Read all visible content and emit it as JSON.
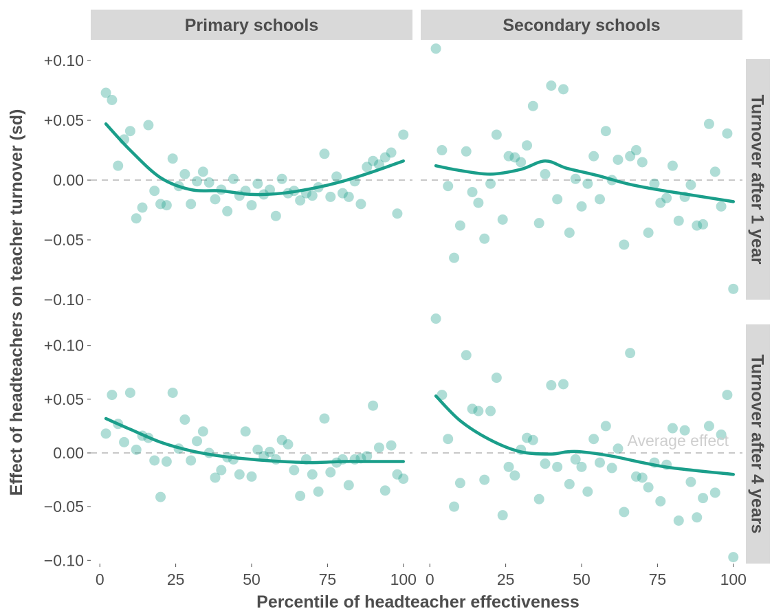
{
  "chart_data": {
    "type": "scatter",
    "xlabel": "Percentile of headteacher effectiveness",
    "ylabel": "Effect of headteachers on teacher turnover (sd)",
    "x_ticks": [
      0,
      25,
      50,
      75,
      100
    ],
    "x_tick_labels": [
      "0",
      "25",
      "50",
      "75",
      "100"
    ],
    "xlim": [
      -3,
      103
    ],
    "columns": [
      "Primary schools",
      "Secondary schools"
    ],
    "rows": [
      "Turnover after 1 year",
      "Turnover after 4 years"
    ],
    "reference_line": {
      "y": 0,
      "style": "dashed",
      "label": "Average effect"
    },
    "colors": {
      "points": "#1a9e8a",
      "line": "#1a9e8a",
      "strip": "#d9d9d9",
      "reference": "#c8c8c8",
      "axis_text": "#4d4d4d",
      "annotation": "#cfcfcf"
    },
    "panels": [
      {
        "column": "Primary schools",
        "row": "Turnover after 1 year",
        "ylim": [
          -0.1,
          0.115
        ],
        "y_ticks": [
          0.1,
          0.05,
          0,
          -0.05,
          -0.1
        ],
        "y_tick_labels": [
          "+0.10",
          "+0.05",
          "0.00",
          "−0.05",
          "−0.10"
        ],
        "points": [
          [
            2,
            0.073
          ],
          [
            4,
            0.067
          ],
          [
            6,
            0.012
          ],
          [
            8,
            0.034
          ],
          [
            10,
            0.041
          ],
          [
            12,
            -0.032
          ],
          [
            14,
            -0.023
          ],
          [
            16,
            0.046
          ],
          [
            18,
            -0.009
          ],
          [
            20,
            -0.02
          ],
          [
            22,
            -0.021
          ],
          [
            24,
            0.018
          ],
          [
            26,
            -0.005
          ],
          [
            28,
            0.005
          ],
          [
            30,
            -0.02
          ],
          [
            32,
            -0.001
          ],
          [
            34,
            0.007
          ],
          [
            36,
            -0.002
          ],
          [
            38,
            -0.016
          ],
          [
            40,
            -0.008
          ],
          [
            42,
            -0.026
          ],
          [
            44,
            0.001
          ],
          [
            46,
            -0.013
          ],
          [
            48,
            -0.009
          ],
          [
            50,
            -0.021
          ],
          [
            52,
            -0.003
          ],
          [
            54,
            -0.012
          ],
          [
            56,
            -0.008
          ],
          [
            58,
            -0.03
          ],
          [
            60,
            0.001
          ],
          [
            62,
            -0.011
          ],
          [
            64,
            -0.009
          ],
          [
            66,
            -0.017
          ],
          [
            68,
            -0.011
          ],
          [
            70,
            -0.013
          ],
          [
            72,
            -0.006
          ],
          [
            74,
            0.022
          ],
          [
            76,
            -0.014
          ],
          [
            78,
            0.003
          ],
          [
            80,
            -0.011
          ],
          [
            82,
            -0.014
          ],
          [
            84,
            -0.001
          ],
          [
            86,
            -0.02
          ],
          [
            88,
            0.011
          ],
          [
            90,
            0.016
          ],
          [
            92,
            0.013
          ],
          [
            94,
            0.019
          ],
          [
            96,
            0.023
          ],
          [
            98,
            -0.028
          ],
          [
            100,
            0.038
          ]
        ],
        "trend": [
          [
            2,
            0.047
          ],
          [
            10,
            0.025
          ],
          [
            20,
            0.002
          ],
          [
            30,
            -0.008
          ],
          [
            40,
            -0.009
          ],
          [
            50,
            -0.012
          ],
          [
            60,
            -0.011
          ],
          [
            70,
            -0.007
          ],
          [
            80,
            -0.001
          ],
          [
            90,
            0.007
          ],
          [
            100,
            0.016
          ]
        ]
      },
      {
        "column": "Secondary schools",
        "row": "Turnover after 1 year",
        "ylim": [
          -0.1,
          0.115
        ],
        "y_ticks": [
          0.1,
          0.05,
          0,
          -0.05,
          -0.1
        ],
        "y_tick_labels": [
          "+0.10",
          "+0.05",
          "0.00",
          "−0.05",
          "−0.10"
        ],
        "points": [
          [
            2,
            0.11
          ],
          [
            4,
            0.025
          ],
          [
            6,
            -0.005
          ],
          [
            8,
            -0.065
          ],
          [
            10,
            -0.038
          ],
          [
            12,
            0.024
          ],
          [
            14,
            -0.01
          ],
          [
            16,
            -0.019
          ],
          [
            18,
            -0.049
          ],
          [
            20,
            -0.003
          ],
          [
            22,
            0.038
          ],
          [
            24,
            -0.033
          ],
          [
            26,
            0.02
          ],
          [
            28,
            0.019
          ],
          [
            30,
            0.015
          ],
          [
            32,
            0.029
          ],
          [
            34,
            0.062
          ],
          [
            36,
            -0.036
          ],
          [
            38,
            0.005
          ],
          [
            40,
            0.079
          ],
          [
            42,
            -0.016
          ],
          [
            44,
            0.076
          ],
          [
            46,
            -0.044
          ],
          [
            48,
            0.001
          ],
          [
            50,
            -0.022
          ],
          [
            52,
            -0.003
          ],
          [
            54,
            0.02
          ],
          [
            56,
            -0.016
          ],
          [
            58,
            0.041
          ],
          [
            60,
            0
          ],
          [
            62,
            0.017
          ],
          [
            64,
            -0.054
          ],
          [
            66,
            0.02
          ],
          [
            68,
            0.025
          ],
          [
            70,
            0.015
          ],
          [
            72,
            -0.044
          ],
          [
            74,
            -0.003
          ],
          [
            76,
            -0.019
          ],
          [
            78,
            -0.015
          ],
          [
            80,
            0.012
          ],
          [
            82,
            -0.034
          ],
          [
            84,
            -0.014
          ],
          [
            86,
            -0.004
          ],
          [
            88,
            -0.038
          ],
          [
            90,
            -0.037
          ],
          [
            92,
            0.047
          ],
          [
            94,
            0.007
          ],
          [
            96,
            -0.022
          ],
          [
            98,
            0.039
          ],
          [
            100,
            -0.091
          ]
        ],
        "trend": [
          [
            2,
            0.012
          ],
          [
            10,
            0.008
          ],
          [
            20,
            0.005
          ],
          [
            30,
            0.009
          ],
          [
            38,
            0.016
          ],
          [
            45,
            0.01
          ],
          [
            55,
            0.004
          ],
          [
            65,
            -0.003
          ],
          [
            75,
            -0.008
          ],
          [
            85,
            -0.012
          ],
          [
            100,
            -0.018
          ]
        ]
      },
      {
        "column": "Primary schools",
        "row": "Turnover after 4 years",
        "ylim": [
          -0.103,
          0.135
        ],
        "y_ticks": [
          0.1,
          0.05,
          0,
          -0.05,
          -0.1
        ],
        "y_tick_labels": [
          "+0.10",
          "+0.05",
          "0.00",
          "−0.05",
          "−0.10"
        ],
        "points": [
          [
            2,
            0.018
          ],
          [
            4,
            0.054
          ],
          [
            6,
            0.027
          ],
          [
            8,
            0.01
          ],
          [
            10,
            0.056
          ],
          [
            12,
            0.003
          ],
          [
            14,
            0.016
          ],
          [
            16,
            0.014
          ],
          [
            18,
            -0.007
          ],
          [
            20,
            -0.041
          ],
          [
            22,
            -0.008
          ],
          [
            24,
            0.056
          ],
          [
            26,
            0.004
          ],
          [
            28,
            0.031
          ],
          [
            30,
            -0.007
          ],
          [
            32,
            0.011
          ],
          [
            34,
            0.02
          ],
          [
            36,
            0
          ],
          [
            38,
            -0.023
          ],
          [
            40,
            -0.016
          ],
          [
            42,
            -0.004
          ],
          [
            44,
            -0.006
          ],
          [
            46,
            -0.02
          ],
          [
            48,
            0.02
          ],
          [
            50,
            -0.022
          ],
          [
            52,
            0.003
          ],
          [
            54,
            -0.003
          ],
          [
            56,
            0.001
          ],
          [
            58,
            -0.006
          ],
          [
            60,
            0.012
          ],
          [
            62,
            0.008
          ],
          [
            64,
            -0.016
          ],
          [
            66,
            -0.04
          ],
          [
            68,
            -0.006
          ],
          [
            70,
            -0.02
          ],
          [
            72,
            -0.036
          ],
          [
            74,
            0.032
          ],
          [
            76,
            -0.018
          ],
          [
            78,
            -0.009
          ],
          [
            80,
            -0.006
          ],
          [
            82,
            -0.03
          ],
          [
            84,
            -0.006
          ],
          [
            86,
            -0.005
          ],
          [
            88,
            -0.003
          ],
          [
            90,
            0.044
          ],
          [
            92,
            0.005
          ],
          [
            94,
            -0.035
          ],
          [
            96,
            0.007
          ],
          [
            98,
            -0.02
          ],
          [
            100,
            -0.024
          ]
        ],
        "trend": [
          [
            2,
            0.032
          ],
          [
            10,
            0.022
          ],
          [
            20,
            0.01
          ],
          [
            30,
            0.002
          ],
          [
            40,
            -0.003
          ],
          [
            50,
            -0.006
          ],
          [
            60,
            -0.008
          ],
          [
            70,
            -0.009
          ],
          [
            80,
            -0.008
          ],
          [
            90,
            -0.008
          ],
          [
            100,
            -0.008
          ]
        ]
      },
      {
        "column": "Secondary schools",
        "row": "Turnover after 4 years",
        "ylim": [
          -0.103,
          0.135
        ],
        "y_ticks": [
          0.1,
          0.05,
          0,
          -0.05,
          -0.1
        ],
        "y_tick_labels": [
          "+0.10",
          "+0.05",
          "0.00",
          "−0.05",
          "−0.10"
        ],
        "points": [
          [
            2,
            0.125
          ],
          [
            4,
            0.054
          ],
          [
            6,
            0.013
          ],
          [
            8,
            -0.05
          ],
          [
            10,
            -0.028
          ],
          [
            12,
            0.091
          ],
          [
            14,
            0.041
          ],
          [
            16,
            0.039
          ],
          [
            18,
            -0.025
          ],
          [
            20,
            0.039
          ],
          [
            22,
            0.07
          ],
          [
            24,
            -0.058
          ],
          [
            26,
            -0.013
          ],
          [
            28,
            -0.021
          ],
          [
            30,
            0.003
          ],
          [
            32,
            0.014
          ],
          [
            34,
            0.012
          ],
          [
            36,
            -0.043
          ],
          [
            38,
            -0.01
          ],
          [
            40,
            0.063
          ],
          [
            42,
            -0.013
          ],
          [
            44,
            0.064
          ],
          [
            46,
            -0.029
          ],
          [
            48,
            -0.006
          ],
          [
            50,
            -0.013
          ],
          [
            52,
            -0.036
          ],
          [
            54,
            0.013
          ],
          [
            56,
            -0.009
          ],
          [
            58,
            0.025
          ],
          [
            60,
            -0.014
          ],
          [
            62,
            0.004
          ],
          [
            64,
            -0.055
          ],
          [
            66,
            0.093
          ],
          [
            68,
            -0.022
          ],
          [
            70,
            -0.023
          ],
          [
            72,
            -0.032
          ],
          [
            74,
            -0.009
          ],
          [
            76,
            -0.045
          ],
          [
            78,
            -0.011
          ],
          [
            80,
            0.023
          ],
          [
            82,
            -0.063
          ],
          [
            84,
            0.021
          ],
          [
            86,
            -0.027
          ],
          [
            88,
            -0.06
          ],
          [
            90,
            -0.042
          ],
          [
            92,
            0.025
          ],
          [
            94,
            -0.037
          ],
          [
            96,
            0.017
          ],
          [
            98,
            0.054
          ],
          [
            100,
            -0.097
          ]
        ],
        "trend": [
          [
            2,
            0.053
          ],
          [
            10,
            0.03
          ],
          [
            20,
            0.012
          ],
          [
            30,
            0.001
          ],
          [
            40,
            -0.001
          ],
          [
            45,
            0.001
          ],
          [
            50,
            0.001
          ],
          [
            60,
            -0.003
          ],
          [
            70,
            -0.009
          ],
          [
            80,
            -0.014
          ],
          [
            100,
            -0.02
          ]
        ]
      }
    ]
  }
}
